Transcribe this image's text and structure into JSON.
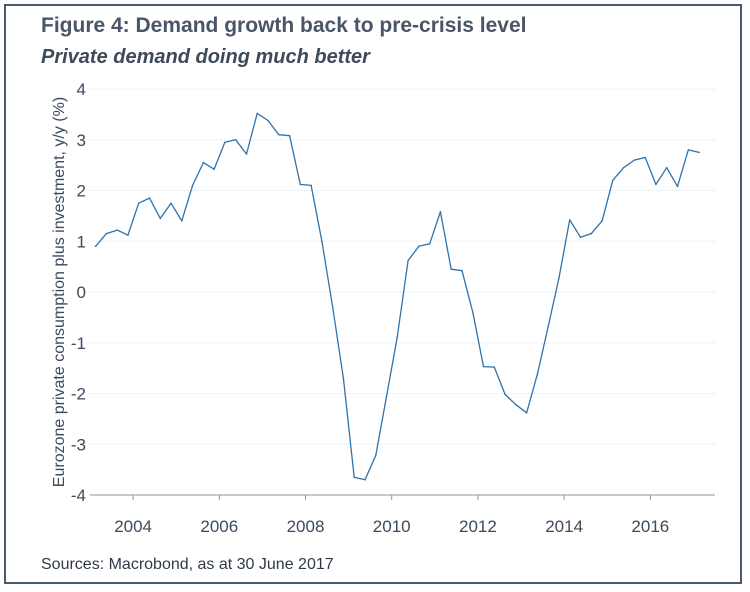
{
  "figure": {
    "title": "Figure 4: Demand growth back to pre-crisis level",
    "subtitle": "Private demand doing much better",
    "source": "Sources: Macrobond, as at 30 June 2017"
  },
  "colors": {
    "line": "#2e73ad",
    "grid": "#e1e6ea",
    "axis": "#8a96a3",
    "tick_text": "#3b4a5c",
    "frame": "#4a5a6e"
  },
  "chart_data": {
    "type": "line",
    "title": "",
    "xlabel": "",
    "ylabel": "Eurozone private consumption plus investment, y/y (%)",
    "xlim": [
      2003.0,
      2017.5
    ],
    "ylim": [
      -4,
      4
    ],
    "x_ticks": [
      2004,
      2006,
      2008,
      2010,
      2012,
      2014,
      2016
    ],
    "x_tick_labels": [
      "2004",
      "2006",
      "2008",
      "2010",
      "2012",
      "2014",
      "2016"
    ],
    "y_ticks": [
      -4,
      -3,
      -2,
      -1,
      0,
      1,
      2,
      3,
      4
    ],
    "y_tick_labels": [
      "-4",
      "-3",
      "-2",
      "-1",
      "0",
      "1",
      "2",
      "3",
      "4"
    ],
    "grid": "horizontal",
    "series": [
      {
        "points": [
          [
            2003.13,
            0.9
          ],
          [
            2003.38,
            1.15
          ],
          [
            2003.63,
            1.22
          ],
          [
            2003.88,
            1.12
          ],
          [
            2004.13,
            1.75
          ],
          [
            2004.38,
            1.85
          ],
          [
            2004.63,
            1.45
          ],
          [
            2004.88,
            1.75
          ],
          [
            2005.13,
            1.4
          ],
          [
            2005.38,
            2.1
          ],
          [
            2005.63,
            2.55
          ],
          [
            2005.88,
            2.42
          ],
          [
            2006.13,
            2.95
          ],
          [
            2006.38,
            3.0
          ],
          [
            2006.63,
            2.72
          ],
          [
            2006.88,
            3.52
          ],
          [
            2007.13,
            3.38
          ],
          [
            2007.38,
            3.1
          ],
          [
            2007.63,
            3.08
          ],
          [
            2007.88,
            2.12
          ],
          [
            2008.13,
            2.1
          ],
          [
            2008.38,
            1.0
          ],
          [
            2008.63,
            -0.3
          ],
          [
            2008.88,
            -1.7
          ],
          [
            2009.13,
            -3.65
          ],
          [
            2009.38,
            -3.7
          ],
          [
            2009.63,
            -3.22
          ],
          [
            2009.88,
            -2.05
          ],
          [
            2010.13,
            -0.88
          ],
          [
            2010.38,
            0.62
          ],
          [
            2010.63,
            0.9
          ],
          [
            2010.88,
            0.95
          ],
          [
            2011.13,
            1.58
          ],
          [
            2011.38,
            0.45
          ],
          [
            2011.63,
            0.42
          ],
          [
            2011.88,
            -0.4
          ],
          [
            2012.13,
            -1.47
          ],
          [
            2012.38,
            -1.48
          ],
          [
            2012.63,
            -2.02
          ],
          [
            2012.88,
            -2.22
          ],
          [
            2013.13,
            -2.38
          ],
          [
            2013.38,
            -1.62
          ],
          [
            2013.63,
            -0.68
          ],
          [
            2013.88,
            0.28
          ],
          [
            2014.13,
            1.42
          ],
          [
            2014.38,
            1.08
          ],
          [
            2014.63,
            1.15
          ],
          [
            2014.88,
            1.4
          ],
          [
            2015.13,
            2.2
          ],
          [
            2015.38,
            2.45
          ],
          [
            2015.63,
            2.6
          ],
          [
            2015.88,
            2.65
          ],
          [
            2016.13,
            2.12
          ],
          [
            2016.38,
            2.45
          ],
          [
            2016.63,
            2.08
          ],
          [
            2016.88,
            2.8
          ],
          [
            2017.13,
            2.75
          ]
        ]
      }
    ]
  }
}
